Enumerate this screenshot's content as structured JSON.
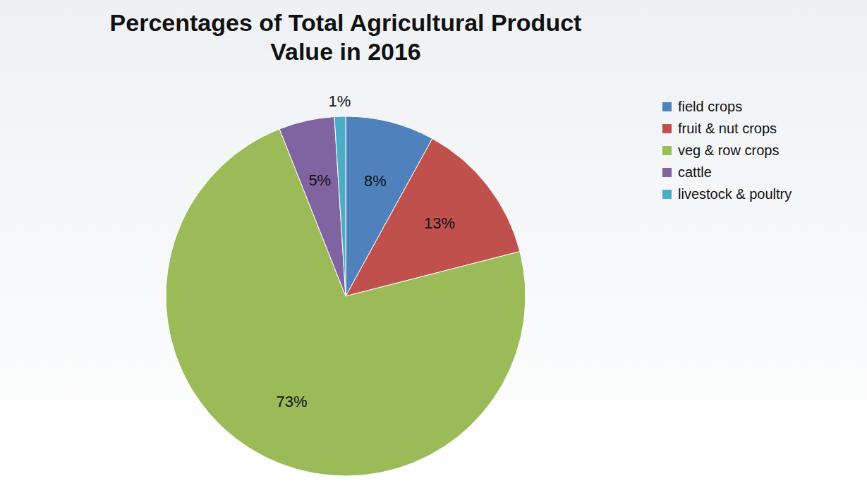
{
  "chart_data": {
    "type": "pie",
    "title": "Percentages of Total Agricultural Product Value in 2016",
    "categories": [
      "field crops",
      "fruit & nut crops",
      "veg & row crops",
      "cattle",
      "livestock & poultry"
    ],
    "values": [
      8,
      13,
      73,
      5,
      1
    ],
    "value_labels": [
      "8%",
      "13%",
      "73%",
      "5%",
      "1%"
    ],
    "colors": [
      "#4f81bd",
      "#c0504d",
      "#9bbb59",
      "#8064a2",
      "#4bacc6"
    ],
    "data_labels": true,
    "legend": "right"
  }
}
